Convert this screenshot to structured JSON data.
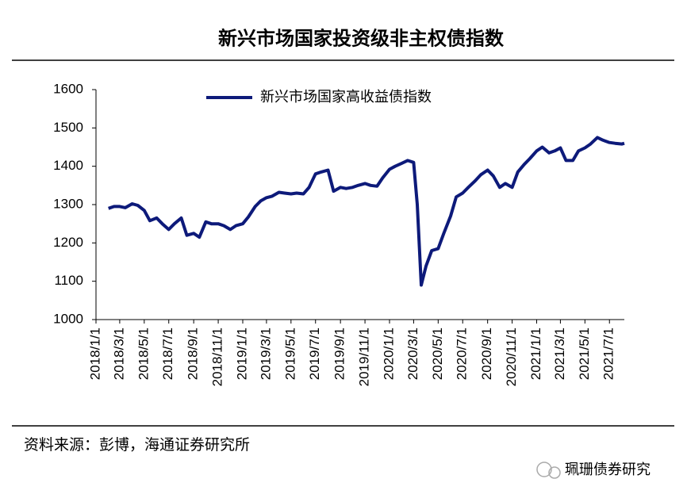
{
  "chart_data": {
    "type": "line",
    "title": "新兴市场国家投资级非主权债指数",
    "xlim": [
      "2018/1/1",
      "2021/8/7"
    ],
    "xticks": [
      "2018/1/1",
      "2018/3/1",
      "2018/5/1",
      "2018/7/1",
      "2018/9/1",
      "2018/11/1",
      "2019/1/1",
      "2019/3/1",
      "2019/5/1",
      "2019/7/1",
      "2019/9/1",
      "2019/11/1",
      "2020/1/1",
      "2020/3/1",
      "2020/5/1",
      "2020/7/1",
      "2020/9/1",
      "2020/11/1",
      "2021/1/1",
      "2021/3/1",
      "2021/5/1",
      "2021/7/1"
    ],
    "ylim": [
      1000,
      1600
    ],
    "yticks": [
      1000,
      1100,
      1200,
      1300,
      1400,
      1500,
      1600
    ],
    "legend": "top",
    "x": [
      "2018/2/1",
      "2018/2/15",
      "2018/3/1",
      "2018/3/15",
      "2018/4/1",
      "2018/4/15",
      "2018/5/1",
      "2018/5/15",
      "2018/6/1",
      "2018/6/15",
      "2018/7/1",
      "2018/7/15",
      "2018/8/1",
      "2018/8/15",
      "2018/9/1",
      "2018/9/15",
      "2018/10/1",
      "2018/10/15",
      "2018/11/1",
      "2018/11/15",
      "2018/12/1",
      "2018/12/15",
      "2019/1/1",
      "2019/1/15",
      "2019/2/1",
      "2019/2/15",
      "2019/3/1",
      "2019/3/15",
      "2019/4/1",
      "2019/4/15",
      "2019/5/1",
      "2019/5/15",
      "2019/6/1",
      "2019/6/15",
      "2019/7/1",
      "2019/7/15",
      "2019/8/1",
      "2019/8/15",
      "2019/9/1",
      "2019/9/15",
      "2019/10/1",
      "2019/10/15",
      "2019/11/1",
      "2019/11/15",
      "2019/12/1",
      "2019/12/15",
      "2020/1/1",
      "2020/1/15",
      "2020/2/1",
      "2020/2/15",
      "2020/3/1",
      "2020/3/10",
      "2020/3/20",
      "2020/4/1",
      "2020/4/15",
      "2020/5/1",
      "2020/5/15",
      "2020/6/1",
      "2020/6/15",
      "2020/7/1",
      "2020/7/15",
      "2020/8/1",
      "2020/8/15",
      "2020/9/1",
      "2020/9/15",
      "2020/10/1",
      "2020/10/15",
      "2020/11/1",
      "2020/11/15",
      "2020/12/1",
      "2020/12/15",
      "2021/1/1",
      "2021/1/15",
      "2021/2/1",
      "2021/2/15",
      "2021/3/1",
      "2021/3/15",
      "2021/4/1",
      "2021/4/15",
      "2021/5/1",
      "2021/5/15",
      "2021/6/1",
      "2021/6/15",
      "2021/7/1",
      "2021/7/15",
      "2021/8/1",
      "2021/8/7"
    ],
    "series": [
      {
        "name": "新兴市场国家高收益债指数",
        "color": "#0d1a7a",
        "values": [
          1290,
          1295,
          1295,
          1292,
          1302,
          1298,
          1285,
          1258,
          1265,
          1250,
          1235,
          1250,
          1265,
          1220,
          1225,
          1215,
          1255,
          1250,
          1250,
          1245,
          1235,
          1245,
          1250,
          1268,
          1295,
          1310,
          1318,
          1322,
          1332,
          1330,
          1328,
          1330,
          1328,
          1345,
          1380,
          1385,
          1390,
          1335,
          1345,
          1342,
          1345,
          1350,
          1355,
          1350,
          1348,
          1370,
          1392,
          1400,
          1408,
          1415,
          1410,
          1300,
          1090,
          1140,
          1180,
          1185,
          1225,
          1270,
          1320,
          1330,
          1345,
          1362,
          1378,
          1390,
          1375,
          1345,
          1355,
          1345,
          1385,
          1405,
          1420,
          1440,
          1450,
          1435,
          1440,
          1448,
          1415,
          1415,
          1440,
          1448,
          1458,
          1475,
          1468,
          1462,
          1460,
          1458,
          1460
        ]
      }
    ]
  },
  "source": "资料来源：彭博，海通证券研究所",
  "watermark": "珮珊债券研究"
}
